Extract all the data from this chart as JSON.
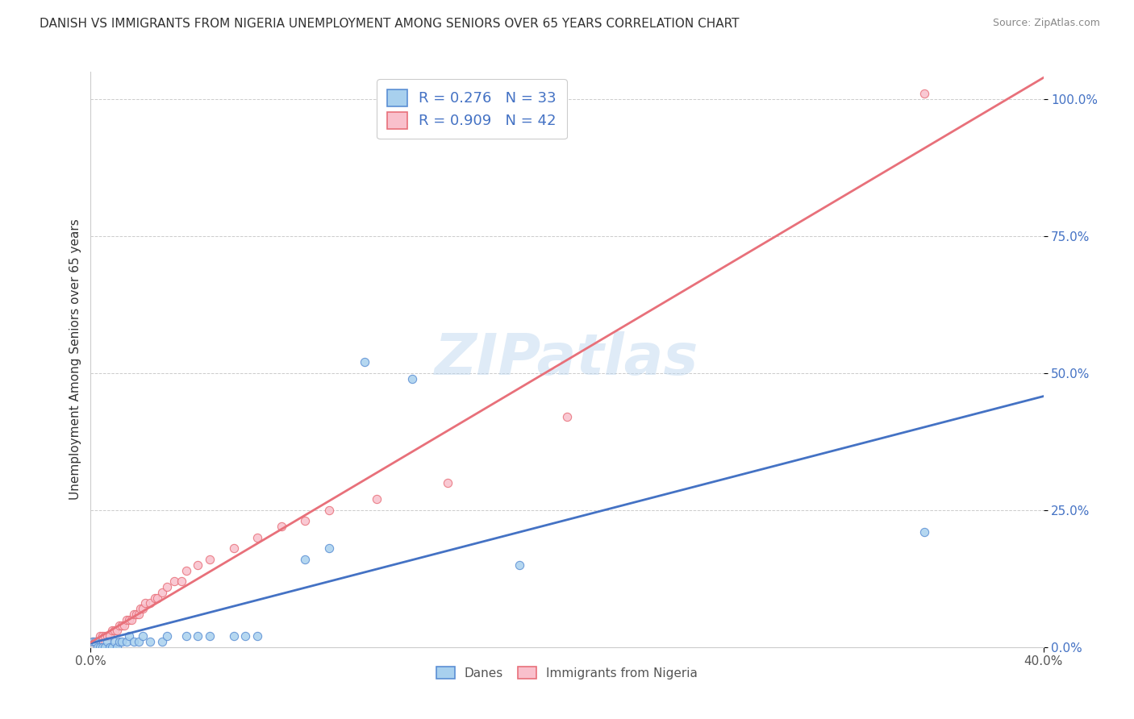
{
  "title": "DANISH VS IMMIGRANTS FROM NIGERIA UNEMPLOYMENT AMONG SENIORS OVER 65 YEARS CORRELATION CHART",
  "source": "Source: ZipAtlas.com",
  "ylabel_label": "Unemployment Among Seniors over 65 years",
  "legend_bottom": [
    "Danes",
    "Immigrants from Nigeria"
  ],
  "danes_R": "0.276",
  "danes_N": "33",
  "nigeria_R": "0.909",
  "nigeria_N": "42",
  "danes_color": "#A8D0EE",
  "nigeria_color": "#F9C0CC",
  "danes_edge_color": "#5B8FD4",
  "nigeria_edge_color": "#E8707A",
  "danes_line_color": "#4472C4",
  "nigeria_line_color": "#E8707A",
  "danes_scatter": [
    [
      0.001,
      0.01
    ],
    [
      0.002,
      0.01
    ],
    [
      0.003,
      0.0
    ],
    [
      0.004,
      0.0
    ],
    [
      0.005,
      0.0
    ],
    [
      0.006,
      0.0
    ],
    [
      0.007,
      0.01
    ],
    [
      0.008,
      0.0
    ],
    [
      0.009,
      0.0
    ],
    [
      0.01,
      0.01
    ],
    [
      0.011,
      0.0
    ],
    [
      0.012,
      0.01
    ],
    [
      0.013,
      0.01
    ],
    [
      0.015,
      0.01
    ],
    [
      0.016,
      0.02
    ],
    [
      0.018,
      0.01
    ],
    [
      0.02,
      0.01
    ],
    [
      0.022,
      0.02
    ],
    [
      0.025,
      0.01
    ],
    [
      0.03,
      0.01
    ],
    [
      0.032,
      0.02
    ],
    [
      0.04,
      0.02
    ],
    [
      0.045,
      0.02
    ],
    [
      0.05,
      0.02
    ],
    [
      0.06,
      0.02
    ],
    [
      0.065,
      0.02
    ],
    [
      0.07,
      0.02
    ],
    [
      0.09,
      0.16
    ],
    [
      0.1,
      0.18
    ],
    [
      0.115,
      0.52
    ],
    [
      0.135,
      0.49
    ],
    [
      0.18,
      0.15
    ],
    [
      0.35,
      0.21
    ]
  ],
  "nigeria_scatter": [
    [
      0.001,
      0.01
    ],
    [
      0.002,
      0.01
    ],
    [
      0.003,
      0.01
    ],
    [
      0.004,
      0.02
    ],
    [
      0.005,
      0.02
    ],
    [
      0.006,
      0.02
    ],
    [
      0.007,
      0.02
    ],
    [
      0.008,
      0.02
    ],
    [
      0.009,
      0.03
    ],
    [
      0.01,
      0.03
    ],
    [
      0.011,
      0.03
    ],
    [
      0.012,
      0.04
    ],
    [
      0.013,
      0.04
    ],
    [
      0.014,
      0.04
    ],
    [
      0.015,
      0.05
    ],
    [
      0.016,
      0.05
    ],
    [
      0.017,
      0.05
    ],
    [
      0.018,
      0.06
    ],
    [
      0.019,
      0.06
    ],
    [
      0.02,
      0.06
    ],
    [
      0.021,
      0.07
    ],
    [
      0.022,
      0.07
    ],
    [
      0.023,
      0.08
    ],
    [
      0.025,
      0.08
    ],
    [
      0.027,
      0.09
    ],
    [
      0.028,
      0.09
    ],
    [
      0.03,
      0.1
    ],
    [
      0.032,
      0.11
    ],
    [
      0.035,
      0.12
    ],
    [
      0.038,
      0.12
    ],
    [
      0.04,
      0.14
    ],
    [
      0.045,
      0.15
    ],
    [
      0.05,
      0.16
    ],
    [
      0.06,
      0.18
    ],
    [
      0.07,
      0.2
    ],
    [
      0.08,
      0.22
    ],
    [
      0.09,
      0.23
    ],
    [
      0.1,
      0.25
    ],
    [
      0.12,
      0.27
    ],
    [
      0.15,
      0.3
    ],
    [
      0.2,
      0.42
    ],
    [
      0.35,
      1.01
    ]
  ],
  "xlim": [
    0.0,
    0.4
  ],
  "ylim": [
    0.0,
    1.05
  ],
  "ytick_vals": [
    0.0,
    0.25,
    0.5,
    0.75,
    1.0
  ],
  "ytick_labels": [
    "0.0%",
    "25.0%",
    "50.0%",
    "75.0%",
    "100.0%"
  ],
  "xtick_vals": [
    0.0,
    0.4
  ],
  "xtick_labels": [
    "0.0%",
    "40.0%"
  ],
  "watermark": "ZIPatlas",
  "background_color": "#FFFFFF",
  "grid_color": "#CCCCCC"
}
